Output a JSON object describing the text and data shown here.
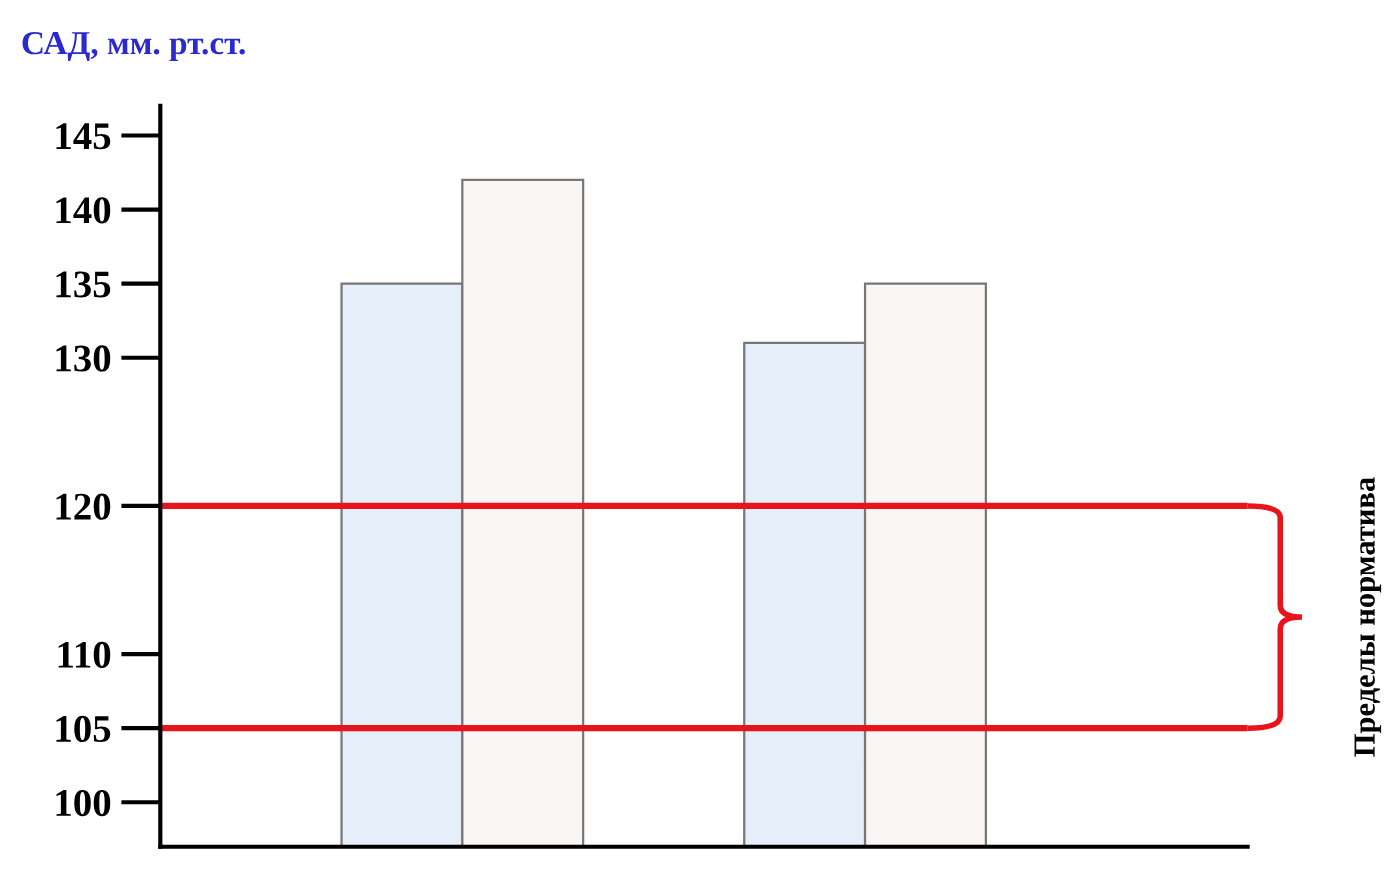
{
  "chart_data": {
    "type": "bar",
    "title": "САД, мм. рт.ст.",
    "categories": [
      null,
      null
    ],
    "series": [
      {
        "color": "#e6eefa",
        "values": [
          135,
          131
        ]
      },
      {
        "color": "#fbf6f6",
        "values": [
          142,
          135
        ]
      }
    ],
    "ylim": [
      97,
      147
    ],
    "yticks": [
      100,
      105,
      110,
      120,
      130,
      135,
      140,
      145
    ],
    "ref_lines": [
      {
        "axis": "y",
        "value": 120,
        "color": "#e8141c"
      },
      {
        "axis": "y",
        "value": 105,
        "color": "#e8141c"
      }
    ],
    "annotations": [
      "Пределы норматива"
    ],
    "grid": false,
    "legend": false
  }
}
